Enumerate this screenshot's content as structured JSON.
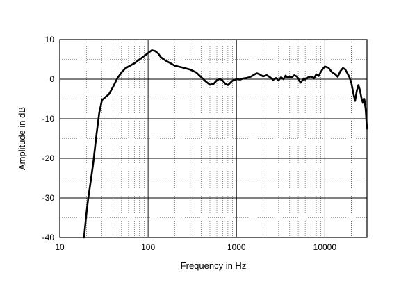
{
  "chart_data": {
    "type": "line",
    "xlabel": "Frequency in Hz",
    "ylabel": "Amplitude in dB",
    "x_scale": "log",
    "xlim": [
      10,
      30000
    ],
    "ylim": [
      -40,
      10
    ],
    "x_ticks": [
      10,
      100,
      1000,
      10000
    ],
    "x_tick_labels": [
      "10",
      "100",
      "1000",
      "10000"
    ],
    "y_ticks": [
      10,
      0,
      -10,
      -20,
      -30,
      -40
    ],
    "y_tick_labels": [
      "10",
      "0",
      "-10",
      "-20",
      "-30",
      "-40"
    ],
    "grid": true,
    "series": [
      {
        "color": "#000000",
        "x": [
          18.8,
          20,
          21,
          22,
          24,
          26,
          28,
          30,
          33,
          36,
          40,
          45,
          50,
          55,
          60,
          70,
          80,
          90,
          100,
          110,
          120,
          130,
          140,
          160,
          180,
          200,
          250,
          300,
          350,
          400,
          450,
          500,
          550,
          600,
          650,
          700,
          750,
          800,
          900,
          1000,
          1100,
          1200,
          1300,
          1400,
          1500,
          1600,
          1700,
          1800,
          2000,
          2200,
          2400,
          2600,
          2800,
          3000,
          3200,
          3400,
          3600,
          3800,
          4000,
          4200,
          4500,
          4800,
          5000,
          5300,
          5500,
          5800,
          6000,
          6500,
          7000,
          7500,
          8000,
          8500,
          9000,
          9500,
          10000,
          11000,
          12000,
          13000,
          14000,
          15000,
          16000,
          17000,
          18000,
          19000,
          20000,
          21000,
          22000,
          23000,
          24000,
          25000,
          26000,
          27000,
          28000,
          29000,
          30000
        ],
        "y": [
          -40,
          -34,
          -30,
          -27,
          -21,
          -14,
          -8.5,
          -5.3,
          -4.5,
          -3.8,
          -2.0,
          0.3,
          1.7,
          2.7,
          3.2,
          4.0,
          5.0,
          5.8,
          6.6,
          7.3,
          7.1,
          6.5,
          5.5,
          4.6,
          4.0,
          3.4,
          2.9,
          2.4,
          1.7,
          0.5,
          -0.6,
          -1.4,
          -1.2,
          -0.3,
          0.1,
          -0.4,
          -1.2,
          -1.5,
          -0.4,
          0.0,
          -0.1,
          0.2,
          0.3,
          0.5,
          0.8,
          1.2,
          1.5,
          1.3,
          0.7,
          1.0,
          0.5,
          -0.2,
          0.3,
          -0.3,
          0.5,
          0.0,
          0.9,
          0.4,
          0.6,
          0.4,
          1.0,
          0.7,
          0.2,
          -0.9,
          -0.5,
          0.2,
          -0.1,
          0.5,
          0.7,
          0.2,
          1.2,
          0.8,
          1.8,
          2.6,
          3.2,
          2.9,
          1.8,
          1.3,
          0.6,
          2.0,
          2.8,
          2.5,
          1.5,
          0.5,
          -1.0,
          -3.5,
          -5.5,
          -3.0,
          -1.5,
          -2.8,
          -4.8,
          -6.0,
          -5.0,
          -7.5,
          -12.5
        ]
      }
    ]
  }
}
